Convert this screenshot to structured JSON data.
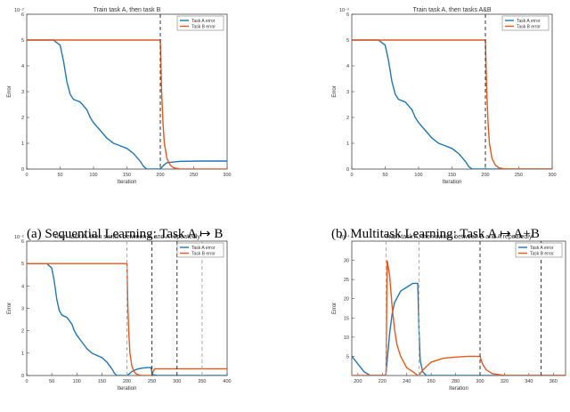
{
  "captions": {
    "a": "(a) Sequential Learning: Task A ↦ B",
    "b": "(b) Multitask Learning: Task A ↦ A+B"
  },
  "colors": {
    "task_a": "#1f77b4",
    "task_b": "#e8581c",
    "vline_dark": "#333333",
    "vline_light": "#aaaaaa"
  },
  "chart_data": [
    {
      "type": "line",
      "title": "Train task A, then task B",
      "xlabel": "Iteration",
      "ylabel": "Error",
      "xlim": [
        0,
        300
      ],
      "ylim": [
        0,
        0.06
      ],
      "xticks": [
        "0",
        "50",
        "100",
        "150",
        "200",
        "250",
        "300"
      ],
      "yticks": [
        "0",
        "0.01",
        "0.02",
        "0.03",
        "0.04",
        "0.05",
        "0.06"
      ],
      "ytick_labels": [
        "0",
        "1",
        "2",
        "3",
        "4",
        "5",
        "6"
      ],
      "y_multiplier": "10⁻²",
      "legend": {
        "placement": "top-right",
        "entries": [
          "Task A error",
          "Task B error"
        ]
      },
      "vlines": [
        {
          "x": 200,
          "style": "dark"
        }
      ],
      "series": [
        {
          "name": "Task A error",
          "color": "task_a",
          "x": [
            0,
            30,
            40,
            50,
            55,
            60,
            65,
            70,
            80,
            90,
            95,
            100,
            110,
            120,
            130,
            140,
            150,
            160,
            170,
            175,
            180,
            190,
            200,
            205,
            210,
            230,
            260,
            300
          ],
          "y": [
            0.05,
            0.05,
            0.05,
            0.048,
            0.042,
            0.034,
            0.029,
            0.027,
            0.026,
            0.023,
            0.02,
            0.018,
            0.015,
            0.012,
            0.01,
            0.009,
            0.008,
            0.006,
            0.003,
            0.001,
            0.0,
            0.0,
            0.0,
            0.0015,
            0.0025,
            0.003,
            0.0031,
            0.0031
          ]
        },
        {
          "name": "Task B error",
          "color": "task_b",
          "x": [
            0,
            199,
            200,
            201,
            202,
            204,
            206,
            210,
            215,
            220,
            230,
            300
          ],
          "y": [
            0.05,
            0.05,
            0.05,
            0.04,
            0.03,
            0.018,
            0.01,
            0.004,
            0.0015,
            0.0005,
            0.0,
            0.0
          ]
        }
      ]
    },
    {
      "type": "line",
      "title": "Train task A, then tasks A&B",
      "xlabel": "Iteration",
      "ylabel": "Error",
      "xlim": [
        0,
        300
      ],
      "ylim": [
        0,
        0.06
      ],
      "xticks": [
        "0",
        "50",
        "100",
        "150",
        "200",
        "250",
        "300"
      ],
      "yticks": [
        "0",
        "0.01",
        "0.02",
        "0.03",
        "0.04",
        "0.05",
        "0.06"
      ],
      "ytick_labels": [
        "0",
        "1",
        "2",
        "3",
        "4",
        "5",
        "6"
      ],
      "y_multiplier": "10⁻²",
      "legend": {
        "placement": "top-right",
        "entries": [
          "Task A error",
          "Task B error"
        ]
      },
      "vlines": [
        {
          "x": 200,
          "style": "dark"
        }
      ],
      "series": [
        {
          "name": "Task A error",
          "color": "task_a",
          "x": [
            0,
            30,
            40,
            50,
            55,
            60,
            65,
            70,
            80,
            90,
            95,
            100,
            110,
            120,
            130,
            140,
            150,
            160,
            170,
            175,
            180,
            190,
            200,
            300
          ],
          "y": [
            0.05,
            0.05,
            0.05,
            0.048,
            0.042,
            0.034,
            0.029,
            0.027,
            0.026,
            0.023,
            0.02,
            0.018,
            0.015,
            0.012,
            0.01,
            0.009,
            0.008,
            0.006,
            0.003,
            0.001,
            0.0,
            0.0,
            0.0,
            0.0
          ]
        },
        {
          "name": "Task B error",
          "color": "task_b",
          "x": [
            0,
            199,
            200,
            201,
            202,
            204,
            206,
            210,
            215,
            220,
            230,
            300
          ],
          "y": [
            0.05,
            0.05,
            0.05,
            0.04,
            0.03,
            0.018,
            0.01,
            0.004,
            0.0015,
            0.0005,
            0.0,
            0.0
          ]
        }
      ]
    },
    {
      "type": "line",
      "title": "Train task A, then switch between B and A repeatedly",
      "xlabel": "Iteration",
      "ylabel": "Error",
      "xlim": [
        0,
        400
      ],
      "ylim": [
        0,
        0.06
      ],
      "xticks": [
        "0",
        "50",
        "100",
        "150",
        "200",
        "250",
        "300",
        "350",
        "400"
      ],
      "yticks": [
        "0",
        "0.01",
        "0.02",
        "0.03",
        "0.04",
        "0.05",
        "0.06"
      ],
      "ytick_labels": [
        "0",
        "1",
        "2",
        "3",
        "4",
        "5",
        "6"
      ],
      "y_multiplier": "10⁻²",
      "legend": {
        "placement": "top-right",
        "entries": [
          "Task A error",
          "Task B error"
        ]
      },
      "vlines": [
        {
          "x": 200,
          "style": "light"
        },
        {
          "x": 250,
          "style": "dark"
        },
        {
          "x": 300,
          "style": "dark"
        },
        {
          "x": 350,
          "style": "light"
        }
      ],
      "series": [
        {
          "name": "Task A error",
          "color": "task_a",
          "x": [
            0,
            30,
            40,
            50,
            55,
            60,
            65,
            70,
            80,
            90,
            95,
            100,
            110,
            120,
            130,
            140,
            150,
            160,
            170,
            175,
            180,
            190,
            200,
            205,
            210,
            220,
            230,
            240,
            248,
            250,
            252,
            260,
            300,
            400
          ],
          "y": [
            0.05,
            0.05,
            0.05,
            0.048,
            0.042,
            0.034,
            0.029,
            0.027,
            0.026,
            0.023,
            0.02,
            0.018,
            0.015,
            0.012,
            0.01,
            0.009,
            0.008,
            0.006,
            0.003,
            0.001,
            0.0,
            0.0,
            0.0,
            0.0008,
            0.0018,
            0.0028,
            0.0033,
            0.0035,
            0.0036,
            0.0015,
            0.0003,
            0.0,
            0.0,
            0.0
          ]
        },
        {
          "name": "Task B error",
          "color": "task_b",
          "x": [
            0,
            199,
            200,
            201,
            202,
            204,
            206,
            210,
            215,
            220,
            230,
            248,
            250,
            252,
            255,
            260,
            300,
            400
          ],
          "y": [
            0.05,
            0.05,
            0.05,
            0.04,
            0.03,
            0.018,
            0.01,
            0.004,
            0.0015,
            0.0005,
            0.0,
            0.0,
            0.0,
            0.0015,
            0.003,
            0.003,
            0.003,
            0.003
          ]
        }
      ]
    },
    {
      "type": "line",
      "title": "Train task A, then switch between B and A repeatedly",
      "xlabel": "Iteration",
      "ylabel": "Error",
      "xlim": [
        195,
        370
      ],
      "ylim": [
        0,
        0.0035
      ],
      "xticks": [
        "200",
        "220",
        "240",
        "260",
        "280",
        "300",
        "320",
        "340",
        "360"
      ],
      "xtick_values": [
        200,
        220,
        240,
        260,
        280,
        300,
        320,
        340,
        360
      ],
      "yticks": [
        "0.0005",
        "0.001",
        "0.0015",
        "0.002",
        "0.0025",
        "0.003"
      ],
      "ytick_labels": [
        "5",
        "10",
        "15",
        "20",
        "25",
        "30"
      ],
      "ytick_values": [
        0.0005,
        0.001,
        0.0015,
        0.002,
        0.0025,
        0.003
      ],
      "y_multiplier": "10⁻⁴",
      "legend": {
        "placement": "top-right",
        "entries": [
          "Task A error",
          "Task B error"
        ]
      },
      "vlines": [
        {
          "x": 223,
          "style": "light"
        },
        {
          "x": 250,
          "style": "light"
        },
        {
          "x": 300,
          "style": "dark"
        },
        {
          "x": 350,
          "style": "dark"
        }
      ],
      "series": [
        {
          "name": "Task A error",
          "color": "task_a",
          "x": [
            195,
            200,
            205,
            210,
            212,
            214,
            216,
            218,
            220,
            222,
            223,
            224,
            226,
            228,
            230,
            235,
            240,
            245,
            249,
            250,
            251,
            253,
            256,
            260,
            270,
            280,
            290,
            299,
            300,
            302,
            305,
            310,
            320,
            350,
            370
          ],
          "y": [
            0.0005,
            0.0003,
            0.0001,
            0.0,
            0.0,
            0.0,
            0.0,
            0.0,
            0.0,
            0.0,
            5e-05,
            0.0004,
            0.0011,
            0.0016,
            0.0019,
            0.0022,
            0.0023,
            0.0024,
            0.0024,
            0.0012,
            0.0004,
            0.0001,
            0.0,
            0.0,
            0.0,
            0.0,
            0.0,
            0.0,
            0.0,
            0.0,
            0.0,
            0.0,
            0.0,
            0.0,
            0.0
          ]
        },
        {
          "name": "Task B error",
          "color": "task_b",
          "x": [
            195,
            210,
            220,
            222,
            223,
            224,
            226,
            228,
            230,
            232,
            235,
            240,
            245,
            249,
            250,
            252,
            255,
            260,
            270,
            280,
            290,
            299,
            300,
            302,
            305,
            310,
            320,
            350,
            370
          ],
          "y": [
            0.0,
            0.0,
            0.0,
            0.0,
            0.0,
            0.003,
            0.0026,
            0.0018,
            0.0012,
            0.0008,
            0.0005,
            0.0002,
            0.0001,
            0.0,
            0.0,
            0.0001,
            0.0002,
            0.00035,
            0.00045,
            0.00048,
            0.0005,
            0.0005,
            0.0005,
            0.0003,
            0.00015,
            5e-05,
            0.0,
            0.0,
            0.0
          ]
        }
      ]
    }
  ]
}
